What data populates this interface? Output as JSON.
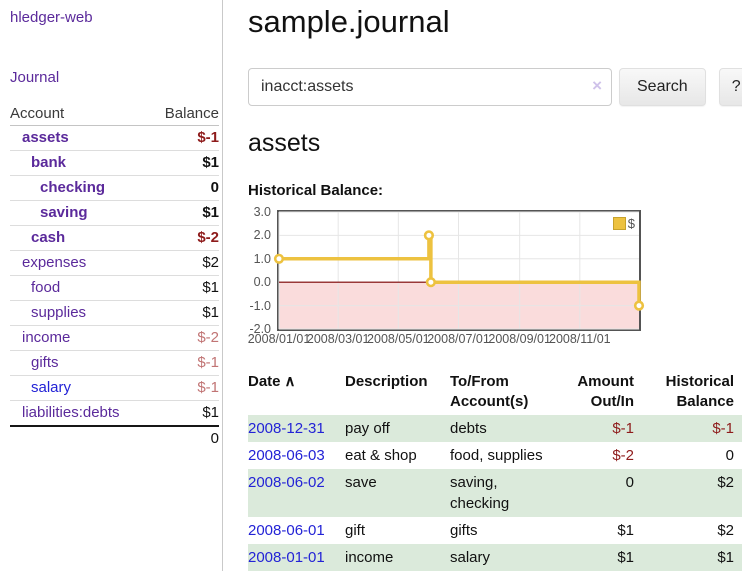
{
  "app": {
    "brand": "hledger-web",
    "nav_journal": "Journal"
  },
  "sidebar": {
    "headers": [
      "Account",
      "Balance"
    ],
    "rows": [
      {
        "account": "assets",
        "balance": "$-1",
        "indent": 0,
        "bold": true,
        "balance_class": "neg",
        "link": "purple"
      },
      {
        "account": "bank",
        "balance": "$1",
        "indent": 1,
        "bold": true,
        "balance_class": "pos",
        "link": "purple"
      },
      {
        "account": "checking",
        "balance": "0",
        "indent": 2,
        "bold": true,
        "balance_class": "pos",
        "link": "purple"
      },
      {
        "account": "saving",
        "balance": "$1",
        "indent": 2,
        "bold": true,
        "balance_class": "pos",
        "link": "purple"
      },
      {
        "account": "cash",
        "balance": "$-2",
        "indent": 1,
        "bold": true,
        "balance_class": "neg",
        "link": "purple"
      },
      {
        "account": "expenses",
        "balance": "$2",
        "indent": 0,
        "bold": false,
        "balance_class": "pos",
        "link": "purple"
      },
      {
        "account": "food",
        "balance": "$1",
        "indent": 1,
        "bold": false,
        "balance_class": "pos",
        "link": "purple"
      },
      {
        "account": "supplies",
        "balance": "$1",
        "indent": 1,
        "bold": false,
        "balance_class": "pos",
        "link": "purple"
      },
      {
        "account": "income",
        "balance": "$-2",
        "indent": 0,
        "bold": false,
        "balance_class": "neg-light",
        "link": "purple"
      },
      {
        "account": "gifts",
        "balance": "$-1",
        "indent": 1,
        "bold": false,
        "balance_class": "neg-light",
        "link": "purple"
      },
      {
        "account": "salary",
        "balance": "$-1",
        "indent": 1,
        "bold": false,
        "balance_class": "neg-light",
        "link": "blue"
      },
      {
        "account": "liabilities:debts",
        "balance": "$1",
        "indent": 0,
        "bold": false,
        "balance_class": "pos",
        "link": "purple"
      }
    ],
    "total": "0"
  },
  "main": {
    "title": "sample.journal",
    "search": {
      "value": "inacct:assets",
      "clear_icon": "×",
      "button": "Search",
      "help": "?"
    },
    "account_heading": "assets",
    "chart_label": "Historical Balance:"
  },
  "chart_data": {
    "type": "line",
    "title": "Historical Balance",
    "step": true,
    "series": [
      {
        "name": "$",
        "points": [
          [
            "2008-01-01",
            1.0
          ],
          [
            "2008-06-01",
            2.0
          ],
          [
            "2008-06-03",
            0.0
          ],
          [
            "2008-12-31",
            -1.0
          ]
        ]
      }
    ],
    "xlim": [
      "2008-01-01",
      "2008-12-31"
    ],
    "ylim": [
      -2.0,
      3.0
    ],
    "y_ticks": [
      3.0,
      2.0,
      1.0,
      0.0,
      -1.0,
      -2.0
    ],
    "x_ticks": [
      "2008/01/01",
      "2008/03/01",
      "2008/05/01",
      "2008/07/01",
      "2008/09/01",
      "2008/11/01"
    ],
    "legend": {
      "label": "$",
      "position": "top-right"
    },
    "grid": true,
    "colors": {
      "line": "#edc240",
      "marker_fill": "#ffffff",
      "negative_region": "#fadcdc",
      "zero_line": "#7d0000",
      "grid": "#e6e6e6",
      "border": "#545454"
    }
  },
  "register": {
    "columns": [
      {
        "label": "Date",
        "label2": "",
        "align": "left",
        "sort_icon": "∧"
      },
      {
        "label": "Description",
        "label2": "",
        "align": "left"
      },
      {
        "label": "To/From",
        "label2": "Account(s)",
        "align": "left"
      },
      {
        "label": "Amount",
        "label2": "Out/In",
        "align": "right"
      },
      {
        "label": "Historical",
        "label2": "Balance",
        "align": "right"
      }
    ],
    "rows": [
      {
        "date": "2008-12-31",
        "description": "pay off",
        "accounts": "debts",
        "amount": "$-1",
        "amount_class": "neg",
        "balance": "$-1",
        "balance_class": "neg"
      },
      {
        "date": "2008-06-03",
        "description": "eat & shop",
        "accounts": "food, supplies",
        "amount": "$-2",
        "amount_class": "neg",
        "balance": "0",
        "balance_class": "pos"
      },
      {
        "date": "2008-06-02",
        "description": "save",
        "accounts": "saving, checking",
        "amount": "0",
        "amount_class": "pos",
        "balance": "$2",
        "balance_class": "pos"
      },
      {
        "date": "2008-06-01",
        "description": "gift",
        "accounts": "gifts",
        "amount": "$1",
        "amount_class": "pos",
        "balance": "$2",
        "balance_class": "pos"
      },
      {
        "date": "2008-01-01",
        "description": "income",
        "accounts": "salary",
        "amount": "$1",
        "amount_class": "pos",
        "balance": "$1",
        "balance_class": "pos"
      }
    ]
  }
}
